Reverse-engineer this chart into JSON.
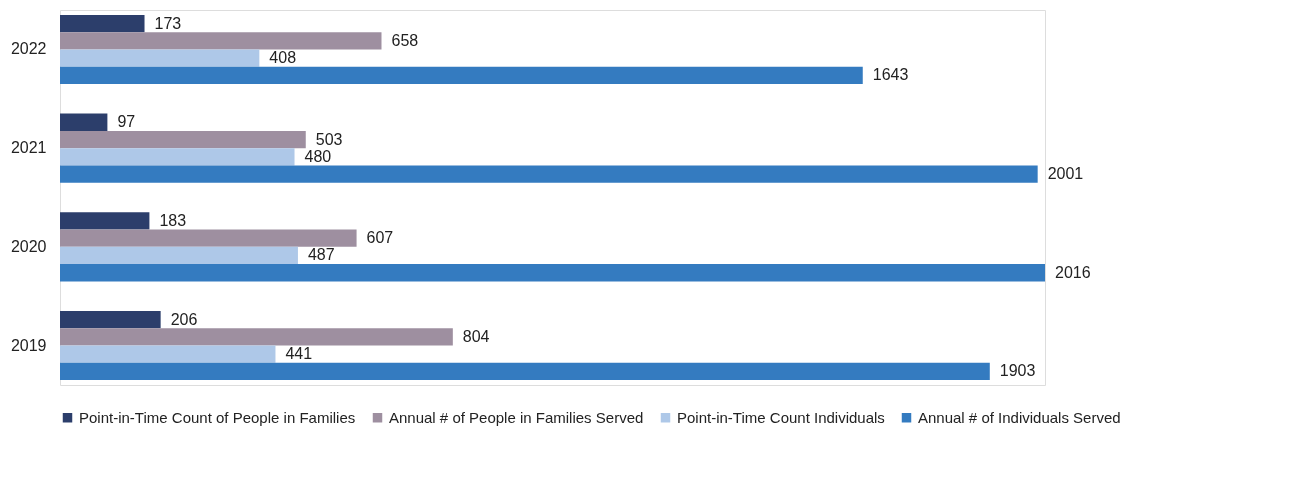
{
  "chart_data": {
    "type": "bar",
    "orientation": "horizontal",
    "categories": [
      "2022",
      "2021",
      "2020",
      "2019"
    ],
    "series": [
      {
        "name": "Point-in-Time Count of People in Families",
        "color": "#2c3e6b",
        "values": [
          173,
          97,
          183,
          206
        ]
      },
      {
        "name": "Annual # of People in Families Served",
        "color": "#9e8fa0",
        "values": [
          658,
          503,
          607,
          804
        ]
      },
      {
        "name": "Point-in-Time Count Individuals",
        "color": "#aec8e8",
        "values": [
          408,
          480,
          487,
          441
        ]
      },
      {
        "name": "Annual # of Individuals Served",
        "color": "#347bc0",
        "values": [
          1643,
          2001,
          2016,
          1903
        ]
      }
    ],
    "data_labels": true,
    "legend": "bottom",
    "grid": false
  }
}
